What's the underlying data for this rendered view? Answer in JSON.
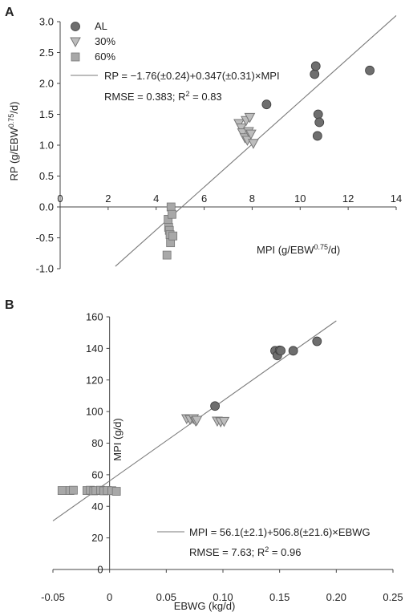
{
  "chart_data": [
    {
      "panel": "A",
      "type": "scatter",
      "xlabel_main": "MPI (g/EBW",
      "xlabel_sup": "0.75",
      "xlabel_end": "/d)",
      "ylabel_main": "RP (g/EBW",
      "ylabel_sup": "0.75",
      "ylabel_end": "/d)",
      "xlim": [
        0,
        14
      ],
      "ylim": [
        -1.0,
        3.0
      ],
      "xticks": [
        0,
        2,
        4,
        6,
        8,
        10,
        12,
        14
      ],
      "yticks": [
        -1.0,
        -0.5,
        0.0,
        0.5,
        1.0,
        1.5,
        2.0,
        2.5,
        3.0
      ],
      "xtick_labels": [
        "0",
        "2",
        "4",
        "6",
        "8",
        "10",
        "12",
        "14"
      ],
      "ytick_labels": [
        "-1.0",
        "-0.5",
        "0.0",
        "0.5",
        "1.0",
        "1.5",
        "2.0",
        "2.5",
        "3.0"
      ],
      "legend_position": "top-left",
      "series": [
        {
          "name": "AL",
          "marker": "circle",
          "color": "#6e6e6e",
          "points": [
            [
              8.6,
              1.66
            ],
            [
              10.6,
              2.15
            ],
            [
              10.65,
              2.28
            ],
            [
              10.75,
              1.5
            ],
            [
              10.8,
              1.37
            ],
            [
              10.72,
              1.15
            ],
            [
              12.9,
              2.21
            ]
          ]
        },
        {
          "name": "30%",
          "marker": "triangle-down",
          "color": "#bdbdbd",
          "points": [
            [
              7.45,
              1.35
            ],
            [
              7.55,
              1.28
            ],
            [
              7.6,
              1.2
            ],
            [
              7.7,
              1.12
            ],
            [
              7.75,
              1.4
            ],
            [
              7.8,
              1.08
            ],
            [
              7.85,
              1.22
            ],
            [
              7.9,
              1.45
            ],
            [
              7.95,
              1.18
            ],
            [
              8.05,
              1.03
            ]
          ]
        },
        {
          "name": "60%",
          "marker": "square",
          "color": "#a8a8a8",
          "points": [
            [
              4.45,
              -0.78
            ],
            [
              4.5,
              -0.2
            ],
            [
              4.52,
              -0.33
            ],
            [
              4.55,
              -0.38
            ],
            [
              4.58,
              -0.45
            ],
            [
              4.6,
              -0.58
            ],
            [
              4.62,
              0.0
            ],
            [
              4.66,
              -0.12
            ],
            [
              4.7,
              -0.47
            ]
          ]
        }
      ],
      "fit_line": {
        "intercept": -1.76,
        "slope": 0.347,
        "x_range": [
          2.3,
          14
        ]
      },
      "equation": "RP = −1.76(±0.24)+0.347(±0.31)×MPI",
      "stats_main": "RMSE = 0.383; R",
      "stats_sup": "2",
      "stats_end": " = 0.83"
    },
    {
      "panel": "B",
      "type": "scatter",
      "xlabel": "EBWG (kg/d)",
      "ylabel": "MPI (g/d)",
      "xlim": [
        -0.05,
        0.25
      ],
      "ylim": [
        0,
        160
      ],
      "xticks": [
        -0.05,
        0.0,
        0.05,
        0.1,
        0.15,
        0.2,
        0.25
      ],
      "yticks": [
        0,
        20,
        40,
        60,
        80,
        100,
        120,
        140,
        160
      ],
      "xtick_labels": [
        "-0.05",
        "0",
        "0.05",
        "0.10",
        "0.15",
        "0.20",
        "0.25"
      ],
      "ytick_labels": [
        "0",
        "20",
        "40",
        "60",
        "80",
        "100",
        "120",
        "140",
        "160"
      ],
      "series": [
        {
          "name": "AL",
          "marker": "circle",
          "color": "#6e6e6e",
          "points": [
            [
              0.093,
              103.5
            ],
            [
              0.146,
              138.5
            ],
            [
              0.148,
              135.5
            ],
            [
              0.15,
              138.8
            ],
            [
              0.151,
              138.6
            ],
            [
              0.162,
              138.5
            ],
            [
              0.183,
              144.5
            ]
          ]
        },
        {
          "name": "30%",
          "marker": "triangle-down",
          "color": "#bdbdbd",
          "points": [
            [
              0.068,
              95.5
            ],
            [
              0.071,
              95.0
            ],
            [
              0.074,
              95.5
            ],
            [
              0.076,
              94.0
            ],
            [
              0.077,
              94.5
            ],
            [
              0.095,
              94.0
            ],
            [
              0.098,
              93.5
            ],
            [
              0.101,
              93.8
            ]
          ]
        },
        {
          "name": "60%",
          "marker": "square",
          "color": "#a8a8a8",
          "points": [
            [
              -0.042,
              50.0
            ],
            [
              -0.035,
              50.0
            ],
            [
              -0.032,
              50.2
            ],
            [
              -0.02,
              50.0
            ],
            [
              -0.017,
              50.2
            ],
            [
              -0.014,
              49.8
            ],
            [
              -0.012,
              50.0
            ],
            [
              -0.008,
              50.2
            ],
            [
              -0.005,
              49.8
            ],
            [
              -0.002,
              50.0
            ],
            [
              0.002,
              49.9
            ],
            [
              0.006,
              49.5
            ]
          ]
        }
      ],
      "fit_line": {
        "intercept": 56.1,
        "slope": 506.8,
        "x_range": [
          -0.05,
          0.2
        ]
      },
      "equation": "MPI = 56.1(±2.1)+506.8(±21.6)×EBWG",
      "stats_main": "RMSE = 7.63; R",
      "stats_sup": "2",
      "stats_end": " = 0.96"
    }
  ]
}
